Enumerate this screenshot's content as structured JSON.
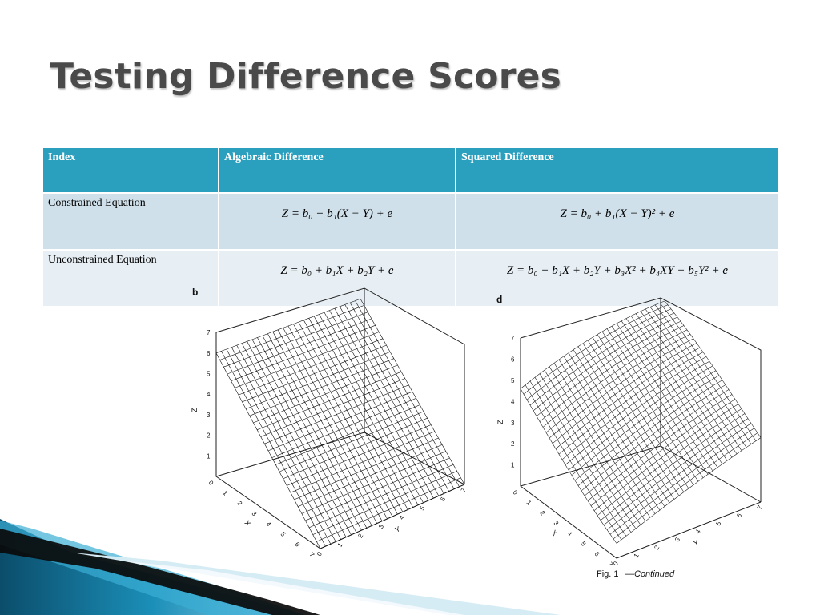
{
  "slide": {
    "title": "Testing Difference Scores"
  },
  "table": {
    "headers": [
      "Index",
      "Algebraic Difference",
      "Squared Difference"
    ],
    "rows": [
      {
        "label": "Constrained Equation",
        "algebraic": "Z = b₀ + b₁(X − Y) + e",
        "squared": "Z = b₀ + b₁(X − Y)² + e"
      },
      {
        "label": "Unconstrained Equation",
        "algebraic": "Z = b₀ + b₁X + b₂Y + e",
        "squared": "Z = b₀ + b₁X + b₂Y + b₃X² + b₄XY + b₅Y² + e"
      }
    ]
  },
  "figures": {
    "left": {
      "panel_letter": "b",
      "z_axis_label": "Z",
      "x_axis_label": "X",
      "y_axis_label": "Y",
      "z_ticks": [
        "1",
        "2",
        "3",
        "4",
        "5",
        "6",
        "7"
      ],
      "x_ticks": [
        "0",
        "1",
        "2",
        "3",
        "4",
        "5",
        "6",
        "7"
      ],
      "y_ticks": [
        "0",
        "1",
        "2",
        "3",
        "4",
        "5",
        "6",
        "7"
      ]
    },
    "right": {
      "panel_letter": "d",
      "z_axis_label": "Z",
      "x_axis_label": "X",
      "y_axis_label": "Y",
      "z_ticks": [
        "1",
        "2",
        "3",
        "4",
        "5",
        "6",
        "7"
      ],
      "x_ticks": [
        "0",
        "1",
        "2",
        "3",
        "4",
        "5",
        "6",
        "7"
      ],
      "y_ticks": [
        "0",
        "1",
        "2",
        "3",
        "4",
        "5",
        "6",
        "7"
      ],
      "caption_fig": "Fig. 1",
      "caption_continued": "Continued"
    }
  },
  "colors": {
    "header_bg": "#2aa0be",
    "row1_bg": "#cfe0ea",
    "row2_bg": "#e7eff5",
    "title_text": "#4a4a4a",
    "accent_dark": "#0b4d6b",
    "accent_light": "#5bc0e0"
  }
}
